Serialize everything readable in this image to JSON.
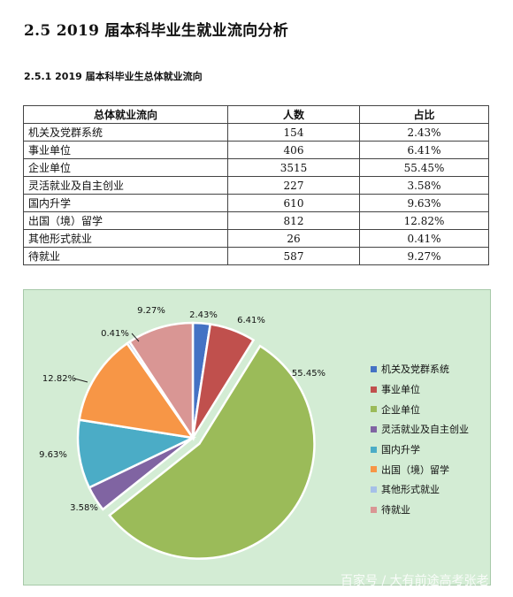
{
  "heading_main": "2.5   2019 届本科毕业生就业流向分析",
  "heading_sub": "2.5.1   2019 届本科毕业生总体就业流向",
  "table": {
    "headers": [
      "总体就业流向",
      "人数",
      "占比"
    ],
    "rows": [
      {
        "name": "机关及党群系统",
        "count": "154",
        "pct": "2.43%"
      },
      {
        "name": "事业单位",
        "count": "406",
        "pct": "6.41%"
      },
      {
        "name": "企业单位",
        "count": "3515",
        "pct": "55.45%"
      },
      {
        "name": "灵活就业及自主创业",
        "count": "227",
        "pct": "3.58%"
      },
      {
        "name": "国内升学",
        "count": "610",
        "pct": "9.63%"
      },
      {
        "name": "出国（境）留学",
        "count": "812",
        "pct": "12.82%"
      },
      {
        "name": "其他形式就业",
        "count": "26",
        "pct": "0.41%"
      },
      {
        "name": "待就业",
        "count": "587",
        "pct": "9.27%"
      }
    ]
  },
  "chart_data": {
    "type": "pie",
    "categories": [
      "机关及党群系统",
      "事业单位",
      "企业单位",
      "灵活就业及自主创业",
      "国内升学",
      "出国（境）留学",
      "其他形式就业",
      "待就业"
    ],
    "values": [
      2.43,
      6.41,
      55.45,
      3.58,
      9.63,
      12.82,
      0.41,
      9.27
    ],
    "labels": [
      "2.43%",
      "6.41%",
      "55.45%",
      "3.58%",
      "9.63%",
      "12.82%",
      "0.41%",
      "9.27%"
    ],
    "colors": [
      "#4472c4",
      "#c0504d",
      "#9bbb59",
      "#8064a2",
      "#4bacc6",
      "#f79646",
      "#a6c0e8",
      "#d99694"
    ],
    "legend_position": "right",
    "exploded": true
  },
  "watermark": "百家号 / 大有前途高考张老"
}
